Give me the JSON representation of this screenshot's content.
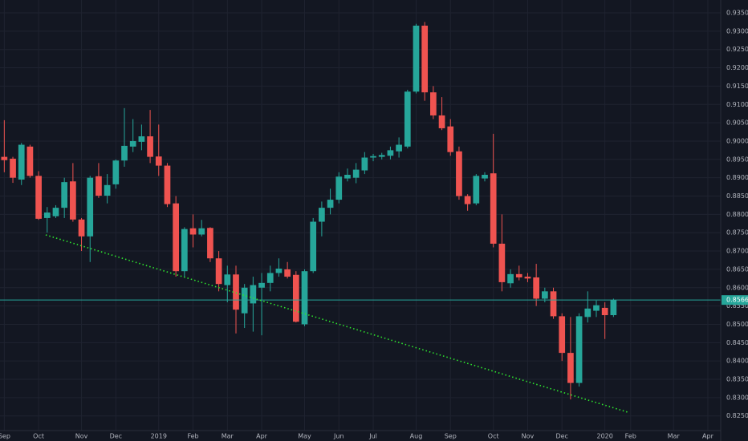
{
  "chart_data": {
    "type": "candlestick",
    "categories": [
      "Sep",
      null,
      null,
      null,
      "Oct",
      null,
      null,
      null,
      null,
      "Nov",
      null,
      null,
      null,
      "Dec",
      null,
      null,
      null,
      null,
      "2019",
      null,
      null,
      null,
      "Feb",
      null,
      null,
      null,
      "Mar",
      null,
      null,
      null,
      "Apr",
      null,
      null,
      null,
      null,
      "May",
      null,
      null,
      null,
      "Jun",
      null,
      null,
      null,
      "Jul",
      null,
      null,
      null,
      null,
      "Aug",
      null,
      null,
      null,
      "Sep",
      null,
      null,
      null,
      null,
      "Oct",
      null,
      null,
      null,
      "Nov",
      null,
      null,
      null,
      "Dec",
      null,
      null,
      null,
      null,
      "2020",
      null,
      null,
      "Feb",
      null,
      null,
      null,
      null,
      "Mar",
      null,
      null,
      null,
      "Apr",
      null
    ],
    "open": [
      0.8957,
      0.8952,
      0.8895,
      0.8985,
      0.8905,
      0.879,
      0.8795,
      0.8818,
      0.889,
      0.8786,
      0.874,
      0.8904,
      0.8851,
      0.8882,
      0.8947,
      0.8985,
      0.8998,
      0.9013,
      0.8958,
      0.8933,
      0.883,
      0.8645,
      0.8762,
      0.8745,
      0.8763,
      0.868,
      0.8607,
      0.8636,
      0.853,
      0.8557,
      0.86,
      0.8613,
      0.864,
      0.865,
      0.8635,
      0.85,
      0.8645,
      0.878,
      0.8818,
      0.884,
      0.8898,
      0.89,
      0.892,
      0.8955,
      0.8957,
      0.896,
      0.8972,
      0.8985,
      0.9135,
      0.9315,
      0.9133,
      0.907,
      0.904,
      0.8972,
      0.885,
      0.883,
      0.8898,
      0.8912,
      0.872,
      0.8612,
      0.8637,
      0.863,
      0.8628,
      0.857,
      0.859,
      0.8522,
      0.8422,
      0.834,
      0.852,
      0.8537,
      0.8545,
      0.8525,
      null,
      null,
      null,
      null,
      null,
      null,
      null,
      null,
      null,
      null,
      null,
      null
    ],
    "high": [
      0.9057,
      0.8957,
      0.8995,
      0.899,
      0.8918,
      0.882,
      0.8825,
      0.89,
      0.894,
      0.879,
      0.8905,
      0.894,
      0.891,
      0.895,
      0.909,
      0.906,
      0.9045,
      0.9085,
      0.9045,
      0.894,
      0.885,
      0.8765,
      0.88,
      0.8785,
      0.8765,
      0.87,
      0.866,
      0.866,
      0.861,
      0.863,
      0.864,
      0.866,
      0.868,
      0.867,
      0.8645,
      0.865,
      0.879,
      0.8835,
      0.887,
      0.8915,
      0.8925,
      0.894,
      0.897,
      0.8965,
      0.8968,
      0.8985,
      0.901,
      0.914,
      0.932,
      0.9325,
      0.915,
      0.912,
      0.906,
      0.8985,
      0.8855,
      0.891,
      0.8915,
      0.902,
      0.88,
      0.865,
      0.866,
      0.864,
      0.8665,
      0.86,
      0.86,
      0.853,
      0.852,
      0.853,
      0.859,
      0.8565,
      0.856,
      0.857,
      null,
      null,
      null,
      null,
      null,
      null,
      null,
      null,
      null,
      null,
      null,
      null
    ],
    "low": [
      0.8915,
      0.8886,
      0.888,
      0.89,
      0.8785,
      0.875,
      0.879,
      0.879,
      0.878,
      0.87,
      0.867,
      0.8845,
      0.883,
      0.887,
      0.893,
      0.897,
      0.8975,
      0.894,
      0.8905,
      0.882,
      0.863,
      0.863,
      0.871,
      0.874,
      0.867,
      0.859,
      0.856,
      0.8475,
      0.849,
      0.848,
      0.847,
      0.859,
      0.863,
      0.8625,
      0.8505,
      0.8495,
      0.864,
      0.874,
      0.88,
      0.883,
      0.889,
      0.8885,
      0.891,
      0.8945,
      0.895,
      0.895,
      0.8955,
      0.898,
      0.913,
      0.911,
      0.906,
      0.903,
      0.896,
      0.884,
      0.881,
      0.8825,
      0.889,
      0.871,
      0.859,
      0.86,
      0.862,
      0.8615,
      0.855,
      0.856,
      0.8515,
      0.84,
      0.8295,
      0.833,
      0.8505,
      0.852,
      0.846,
      0.852,
      null,
      null,
      null,
      null,
      null,
      null,
      null,
      null,
      null,
      null,
      null,
      null
    ],
    "close": [
      0.8948,
      0.89,
      0.899,
      0.8905,
      0.8788,
      0.8805,
      0.8818,
      0.8888,
      0.8786,
      0.874,
      0.89,
      0.8851,
      0.888,
      0.8947,
      0.8987,
      0.9,
      0.9013,
      0.8957,
      0.8933,
      0.8828,
      0.8645,
      0.876,
      0.8745,
      0.8762,
      0.868,
      0.861,
      0.8636,
      0.854,
      0.86,
      0.8607,
      0.8613,
      0.864,
      0.8652,
      0.863,
      0.8507,
      0.8645,
      0.878,
      0.8818,
      0.884,
      0.8903,
      0.8908,
      0.8922,
      0.8955,
      0.8959,
      0.8962,
      0.8975,
      0.899,
      0.9135,
      0.9315,
      0.9133,
      0.907,
      0.9035,
      0.897,
      0.885,
      0.8828,
      0.8905,
      0.8908,
      0.872,
      0.8615,
      0.8637,
      0.8628,
      0.8625,
      0.857,
      0.859,
      0.8522,
      0.8422,
      0.834,
      0.8522,
      0.8543,
      0.8552,
      0.8525,
      0.85663,
      null,
      null,
      null,
      null,
      null,
      null,
      null,
      null,
      null,
      null,
      null,
      null
    ],
    "up_color": "#26a69a",
    "down_color": "#ef5350",
    "last_price": 0.85663,
    "last_price_color": "#26a69a",
    "ylim": [
      0.821,
      0.9385
    ],
    "yticks": [
      {
        "value": 0.825,
        "label": "0.82500"
      },
      {
        "value": 0.83,
        "label": "0.83000"
      },
      {
        "value": 0.835,
        "label": "0.83500"
      },
      {
        "value": 0.84,
        "label": "0.84000"
      },
      {
        "value": 0.845,
        "label": "0.84500"
      },
      {
        "value": 0.85,
        "label": "0.85000"
      },
      {
        "value": 0.855,
        "label": "0.85500"
      },
      {
        "value": 0.86,
        "label": "0.86000"
      },
      {
        "value": 0.865,
        "label": "0.86500"
      },
      {
        "value": 0.87,
        "label": "0.87000"
      },
      {
        "value": 0.875,
        "label": "0.87500"
      },
      {
        "value": 0.88,
        "label": "0.88000"
      },
      {
        "value": 0.885,
        "label": "0.88500"
      },
      {
        "value": 0.89,
        "label": "0.89000"
      },
      {
        "value": 0.895,
        "label": "0.89500"
      },
      {
        "value": 0.9,
        "label": "0.90000"
      },
      {
        "value": 0.905,
        "label": "0.90500"
      },
      {
        "value": 0.91,
        "label": "0.91000"
      },
      {
        "value": 0.915,
        "label": "0.91500"
      },
      {
        "value": 0.92,
        "label": "0.92000"
      },
      {
        "value": 0.925,
        "label": "0.92500"
      },
      {
        "value": 0.93,
        "label": "0.93000"
      },
      {
        "value": 0.935,
        "label": "0.93500"
      }
    ],
    "grid": true
  }
}
